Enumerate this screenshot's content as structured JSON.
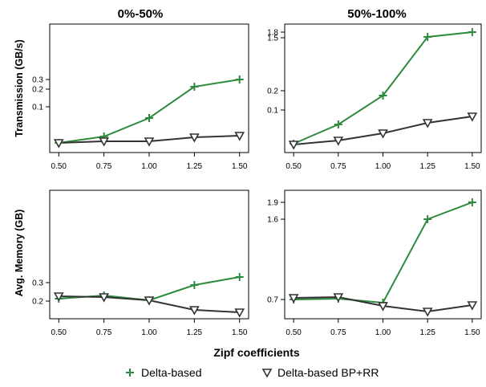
{
  "colors": {
    "delta": "#2e8b3e",
    "bprr": "#333333"
  },
  "figure": {
    "col_titles": [
      "0%-50%",
      "50%-100%"
    ],
    "row_labels": [
      "Transmission (GB/s)",
      "Avg. Memory (GB)"
    ],
    "xlabel": "Zipf coefficients",
    "legend": [
      "Delta-based",
      "Delta-based BP+RR"
    ]
  },
  "chart_data": [
    {
      "type": "line",
      "title": "0%-50%",
      "ylabel": "Transmission (GB/s)",
      "x": [
        0.5,
        0.75,
        1.0,
        1.25,
        1.5
      ],
      "x_ticks": [
        "0.50",
        "0.75",
        "1.00",
        "1.25",
        "1.50"
      ],
      "xlim": [
        0.45,
        1.55
      ],
      "ylim": [
        -0.03,
        0.4
      ],
      "y_ticks": [
        0.1,
        0.2,
        0.3
      ],
      "y_tick_labels": [
        "0.1",
        "0.2",
        "0.3"
      ],
      "series": [
        {
          "name": "Delta-based",
          "marker": "plus",
          "values": [
            0.01,
            0.035,
            0.11,
            0.23,
            0.285
          ]
        },
        {
          "name": "Delta-based BP+RR",
          "marker": "triangle-down",
          "values": [
            0.01,
            0.012,
            0.012,
            0.025,
            0.032
          ]
        }
      ]
    },
    {
      "type": "line",
      "title": "50%-100%",
      "ylabel": "",
      "x": [
        0.5,
        0.75,
        1.0,
        1.25,
        1.5
      ],
      "x_ticks": [
        "0.50",
        "0.75",
        "1.00",
        "1.25",
        "1.50"
      ],
      "xlim": [
        0.45,
        1.55
      ],
      "ylim": [
        -0.05,
        1.95
      ],
      "y_ticks": [
        0.1,
        0.2,
        1.5,
        1.8
      ],
      "y_tick_labels": [
        "0.1",
        "0.2",
        "1.5",
        "1.8"
      ],
      "y_tick_note": "axis is not linear; tick labels are placed as printed",
      "series": [
        {
          "name": "Delta-based",
          "marker": "plus",
          "values": [
            0.02,
            0.04,
            0.15,
            1.5,
            1.8
          ]
        },
        {
          "name": "Delta-based BP+RR",
          "marker": "triangle-down",
          "values": [
            0.01,
            0.015,
            0.03,
            0.05,
            0.07
          ]
        }
      ]
    },
    {
      "type": "line",
      "title": "",
      "ylabel": "Avg. Memory (GB)",
      "x": [
        0.5,
        0.75,
        1.0,
        1.25,
        1.5
      ],
      "x_ticks": [
        "0.50",
        "0.75",
        "1.00",
        "1.25",
        "1.50"
      ],
      "xlim": [
        0.45,
        1.55
      ],
      "ylim": [
        0.13,
        0.6
      ],
      "y_ticks": [
        0.2,
        0.3
      ],
      "y_tick_labels": [
        "0.2",
        "0.3"
      ],
      "series": [
        {
          "name": "Delta-based",
          "marker": "plus",
          "values": [
            0.21,
            0.22,
            0.2,
            0.28,
            0.315
          ]
        },
        {
          "name": "Delta-based BP+RR",
          "marker": "triangle-down",
          "values": [
            0.22,
            0.215,
            0.2,
            0.165,
            0.155
          ]
        }
      ]
    },
    {
      "type": "line",
      "title": "",
      "ylabel": "",
      "x": [
        0.5,
        0.75,
        1.0,
        1.25,
        1.5
      ],
      "x_ticks": [
        "0.50",
        "0.75",
        "1.00",
        "1.25",
        "1.50"
      ],
      "xlim": [
        0.45,
        1.55
      ],
      "ylim": [
        0.5,
        2.0
      ],
      "y_ticks": [
        0.7,
        1.6,
        1.9
      ],
      "y_tick_labels": [
        "0.7",
        "1.6",
        "1.9"
      ],
      "y_tick_note": "axis is not linear; tick labels are placed as printed",
      "series": [
        {
          "name": "Delta-based",
          "marker": "plus",
          "values": [
            0.7,
            0.71,
            0.68,
            1.6,
            1.9
          ]
        },
        {
          "name": "Delta-based BP+RR",
          "marker": "triangle-down",
          "values": [
            0.71,
            0.7,
            0.66,
            0.6,
            0.66
          ]
        }
      ]
    }
  ]
}
